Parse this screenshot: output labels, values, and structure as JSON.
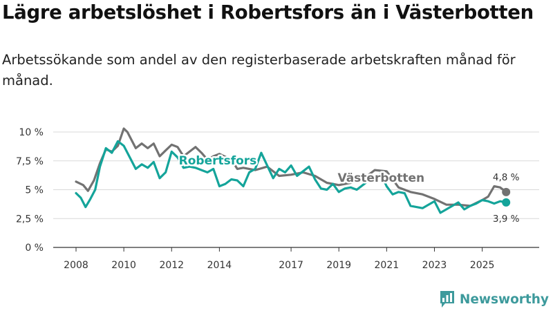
{
  "title": "Lägre arbetslöshet i Robertsfors än i Västerbotten",
  "subtitle": "Arbetssökande som andel av den registerbaserade arbetskraften månad för månad.",
  "brand": {
    "name": "Newsworthy",
    "icon": "newsworthy-logo-icon"
  },
  "colors": {
    "robertsfors": "#14a49a",
    "vasterbotten": "#727272",
    "grid": "#d9d9d9",
    "axis": "#333333"
  },
  "chart_data": {
    "type": "line",
    "title": "Lägre arbetslöshet i Robertsfors än i Västerbotten",
    "xlabel": "",
    "ylabel": "",
    "xlim": [
      2008.0,
      2026.4
    ],
    "ylim": [
      0,
      10
    ],
    "x_ticks": [
      {
        "value": 2008,
        "label": "2008"
      },
      {
        "value": 2010,
        "label": "2010"
      },
      {
        "value": 2012,
        "label": "2012"
      },
      {
        "value": 2014,
        "label": "2014"
      },
      {
        "value": 2017,
        "label": "2017"
      },
      {
        "value": 2019,
        "label": "2019"
      },
      {
        "value": 2021,
        "label": "2021"
      },
      {
        "value": 2023,
        "label": "2023"
      },
      {
        "value": 2025,
        "label": "2025"
      }
    ],
    "y_ticks": [
      {
        "value": 0,
        "label": "0 %"
      },
      {
        "value": 2.5,
        "label": "2,5 %"
      },
      {
        "value": 5,
        "label": "5 %"
      },
      {
        "value": 7.5,
        "label": "7,5 %"
      },
      {
        "value": 10,
        "label": "10 %"
      }
    ],
    "grid": true,
    "series": [
      {
        "name": "Västerbotten",
        "end_label": "4,8 %",
        "x": [
          2008.0,
          2008.3,
          2008.5,
          2008.75,
          2009.0,
          2009.25,
          2009.5,
          2009.75,
          2010.0,
          2010.15,
          2010.5,
          2010.75,
          2011.0,
          2011.25,
          2011.5,
          2011.75,
          2012.0,
          2012.25,
          2012.5,
          2012.75,
          2013.0,
          2013.25,
          2013.5,
          2013.75,
          2014.0,
          2014.5,
          2014.75,
          2015.0,
          2015.5,
          2016.0,
          2016.5,
          2017.0,
          2017.5,
          2018.0,
          2018.5,
          2019.0,
          2019.5,
          2020.0,
          2020.5,
          2021.0,
          2021.5,
          2022.0,
          2022.5,
          2023.0,
          2023.5,
          2024.0,
          2024.5,
          2025.0,
          2025.25,
          2025.5,
          2025.75,
          2026.0
        ],
        "y": [
          5.7,
          5.4,
          4.9,
          5.8,
          7.3,
          8.5,
          8.3,
          8.8,
          10.3,
          10.0,
          8.6,
          9.0,
          8.6,
          9.0,
          7.9,
          8.4,
          8.9,
          8.7,
          7.9,
          8.3,
          8.7,
          8.2,
          7.6,
          7.9,
          8.1,
          7.6,
          6.8,
          6.9,
          6.7,
          7.0,
          6.2,
          6.3,
          6.5,
          6.2,
          5.6,
          5.4,
          5.6,
          5.9,
          6.7,
          6.6,
          5.2,
          4.8,
          4.6,
          4.2,
          3.7,
          3.7,
          3.6,
          4.1,
          4.4,
          5.3,
          5.2,
          4.8
        ]
      },
      {
        "name": "Robertsfors",
        "end_label": "3,9 %",
        "x": [
          2008.0,
          2008.2,
          2008.4,
          2008.6,
          2008.8,
          2009.0,
          2009.25,
          2009.5,
          2009.75,
          2010.0,
          2010.25,
          2010.5,
          2010.75,
          2011.0,
          2011.25,
          2011.5,
          2011.75,
          2012.0,
          2012.25,
          2012.5,
          2012.75,
          2013.0,
          2013.25,
          2013.5,
          2013.75,
          2014.0,
          2014.25,
          2014.5,
          2014.75,
          2015.0,
          2015.25,
          2015.5,
          2015.75,
          2016.0,
          2016.25,
          2016.5,
          2016.75,
          2017.0,
          2017.25,
          2017.5,
          2017.75,
          2018.0,
          2018.25,
          2018.5,
          2018.75,
          2019.0,
          2019.25,
          2019.5,
          2019.75,
          2020.0,
          2020.25,
          2020.5,
          2020.75,
          2021.0,
          2021.25,
          2021.5,
          2021.75,
          2022.0,
          2022.25,
          2022.5,
          2022.75,
          2023.0,
          2023.25,
          2023.5,
          2023.75,
          2024.0,
          2024.25,
          2024.5,
          2024.75,
          2025.0,
          2025.25,
          2025.5,
          2025.75,
          2026.0
        ],
        "y": [
          4.7,
          4.3,
          3.5,
          4.2,
          5.0,
          7.0,
          8.6,
          8.2,
          9.2,
          8.8,
          7.8,
          6.8,
          7.2,
          6.9,
          7.4,
          6.0,
          6.5,
          8.3,
          7.8,
          6.9,
          7.0,
          6.9,
          6.7,
          6.5,
          6.8,
          5.3,
          5.5,
          5.9,
          5.8,
          5.3,
          6.5,
          6.8,
          8.2,
          7.1,
          6.0,
          6.8,
          6.5,
          7.1,
          6.2,
          6.6,
          7.0,
          5.9,
          5.1,
          5.0,
          5.5,
          4.8,
          5.1,
          5.2,
          5.0,
          5.4,
          5.8,
          6.0,
          6.4,
          5.3,
          4.6,
          4.8,
          4.7,
          3.6,
          3.5,
          3.4,
          3.7,
          4.0,
          3.0,
          3.3,
          3.6,
          3.9,
          3.3,
          3.6,
          3.8,
          4.1,
          4.0,
          3.8,
          4.0,
          3.9
        ]
      }
    ],
    "annotations": [
      {
        "text": "Robertsfors",
        "series": "Robertsfors",
        "x": 2012.3,
        "y": 7.2
      },
      {
        "text": "Västerbotten",
        "series": "Västerbotten",
        "x": 2018.95,
        "y": 5.7
      }
    ]
  }
}
